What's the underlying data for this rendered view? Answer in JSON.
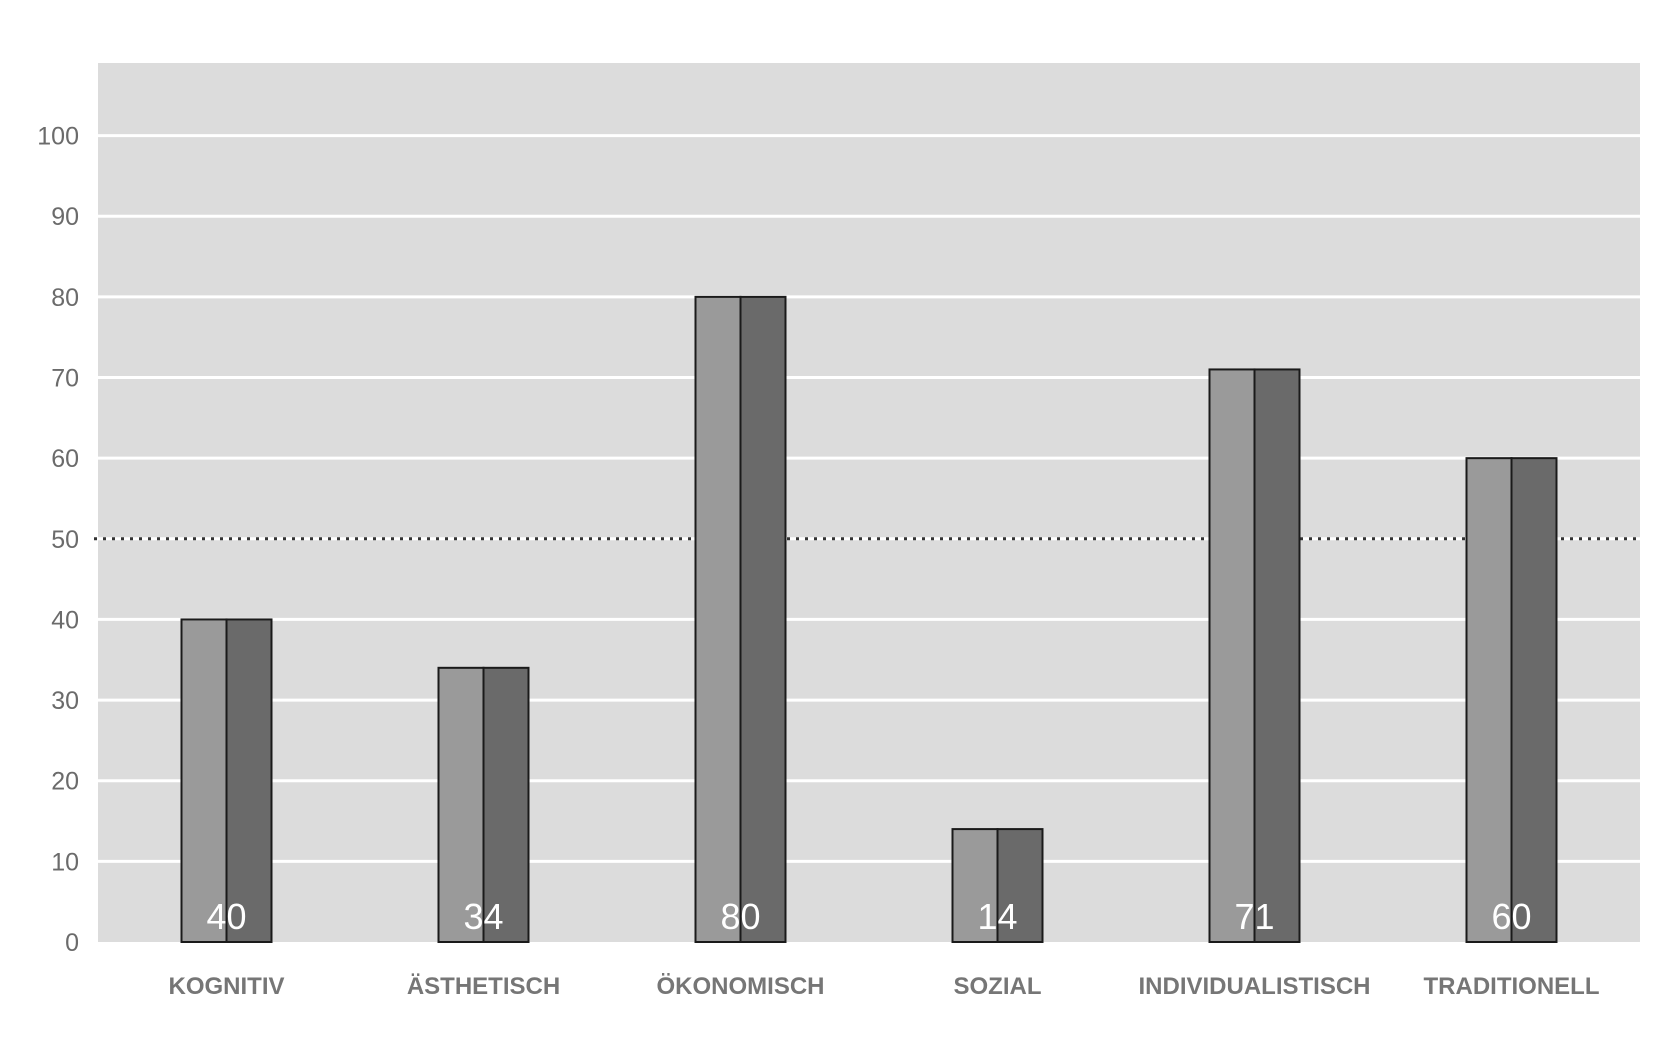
{
  "chart_data": {
    "type": "bar",
    "categories": [
      "KOGNITIV",
      "ÄSTHETISCH",
      "ÖKONOMISCH",
      "SOZIAL",
      "INDIVIDUALISTISCH",
      "TRADITIONELL"
    ],
    "series": [
      {
        "values": [
          40,
          34,
          80,
          14,
          71,
          60
        ],
        "color": "#9a9a9a"
      },
      {
        "values": [
          40,
          34,
          80,
          14,
          71,
          60
        ],
        "color": "#6a6a6a"
      }
    ],
    "data_labels": [
      "40",
      "34",
      "80",
      "14",
      "71",
      "60"
    ],
    "yticks": [
      "0",
      "10",
      "20",
      "30",
      "40",
      "50",
      "60",
      "70",
      "80",
      "90",
      "100"
    ],
    "ylim": [
      0,
      109
    ],
    "reference_line": 50,
    "title": "",
    "xlabel": "",
    "ylabel": "",
    "grid": true,
    "legend": "none",
    "colors": {
      "plot_background": "#dcdcdc",
      "gridline": "#ffffff",
      "reference_line": "#333333",
      "bar_outline": "#1a1a1a"
    }
  }
}
